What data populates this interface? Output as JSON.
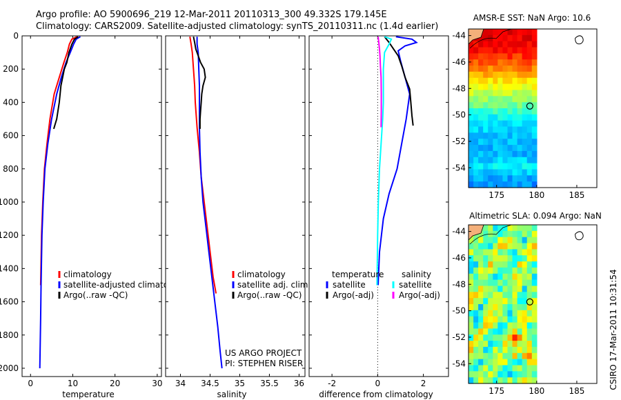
{
  "header": {
    "line1": "Argo profile: AO 5900696_219 12-Mar-2011 20110313_300 49.332S 179.145E",
    "line2": "Climatology: CARS2009. Satellite-adjusted climatology: synTS_20110311.nc (1.4d earlier)"
  },
  "footer": {
    "credit_line1": "US ARGO PROJECT",
    "credit_line2": "PI: STEPHEN RISER",
    "timestamp": "CSIRO 17-Mar-2011 10:31:54"
  },
  "colors": {
    "climatology": "#ff0000",
    "satellite": "#0000ff",
    "argo": "#000000",
    "satellite_diff_salinity": "#00ffff",
    "argo_diff_salinity": "#ff00ff"
  },
  "chart_data": [
    {
      "type": "line",
      "title": "",
      "xlabel": "temperature",
      "ylabel": "",
      "xlim": [
        -2,
        31
      ],
      "ylim": [
        2050,
        0
      ],
      "y_reversed": true,
      "xticks": [
        "0",
        "10",
        "20",
        "30"
      ],
      "yticks": [
        "0",
        "200",
        "400",
        "600",
        "800",
        "1000",
        "1200",
        "1400",
        "1600",
        "1800",
        "2000"
      ],
      "legend_position": "lower-right",
      "series": [
        {
          "name": "climatology",
          "color": "#ff0000",
          "points": [
            [
              11,
              5
            ],
            [
              9.8,
              20
            ],
            [
              9.2,
              50
            ],
            [
              8.7,
              100
            ],
            [
              7.9,
              160
            ],
            [
              6.8,
              250
            ],
            [
              5.6,
              350
            ],
            [
              4.6,
              500
            ],
            [
              3.9,
              650
            ],
            [
              3.3,
              800
            ],
            [
              2.9,
              1000
            ],
            [
              2.6,
              1200
            ],
            [
              2.4,
              1500
            ]
          ]
        },
        {
          "name": "satellite-adjusted climatology",
          "color": "#0000ff",
          "points": [
            [
              11.8,
              5
            ],
            [
              10.8,
              20
            ],
            [
              10.2,
              50
            ],
            [
              9.4,
              100
            ],
            [
              8.4,
              160
            ],
            [
              7.3,
              250
            ],
            [
              6.2,
              350
            ],
            [
              5.0,
              500
            ],
            [
              4.1,
              650
            ],
            [
              3.4,
              800
            ],
            [
              3.0,
              1000
            ],
            [
              2.7,
              1200
            ],
            [
              2.5,
              1500
            ],
            [
              2.4,
              1700
            ],
            [
              2.3,
              1850
            ],
            [
              2.2,
              2000
            ]
          ]
        },
        {
          "name": "Argo(..raw -QC)",
          "color": "#000000",
          "points": [
            [
              11.3,
              5
            ],
            [
              10.4,
              20
            ],
            [
              9.8,
              50
            ],
            [
              9.1,
              100
            ],
            [
              8.6,
              160
            ],
            [
              8.0,
              200
            ],
            [
              7.6,
              250
            ],
            [
              7.2,
              300
            ],
            [
              6.8,
              400
            ],
            [
              6.2,
              500
            ],
            [
              5.5,
              560
            ]
          ]
        }
      ]
    },
    {
      "type": "line",
      "title": "",
      "xlabel": "salinity",
      "ylabel": "",
      "xlim": [
        33.75,
        36.1
      ],
      "ylim": [
        2050,
        0
      ],
      "y_reversed": true,
      "xticks": [
        "34",
        "34.5",
        "35",
        "35.5",
        "36"
      ],
      "legend_position": "lower-right",
      "series": [
        {
          "name": "climatology",
          "color": "#ff0000",
          "points": [
            [
              34.16,
              5
            ],
            [
              34.18,
              50
            ],
            [
              34.2,
              100
            ],
            [
              34.22,
              200
            ],
            [
              34.24,
              300
            ],
            [
              34.25,
              400
            ],
            [
              34.28,
              550
            ],
            [
              34.32,
              700
            ],
            [
              34.35,
              850
            ],
            [
              34.4,
              1000
            ],
            [
              34.45,
              1150
            ],
            [
              34.5,
              1300
            ],
            [
              34.55,
              1450
            ],
            [
              34.6,
              1550
            ]
          ]
        },
        {
          "name": "satellite adj. clim.",
          "color": "#0000ff",
          "points": [
            [
              34.28,
              5
            ],
            [
              34.28,
              50
            ],
            [
              34.3,
              100
            ],
            [
              34.31,
              200
            ],
            [
              34.32,
              300
            ],
            [
              34.32,
              400
            ],
            [
              34.32,
              550
            ],
            [
              34.33,
              700
            ],
            [
              34.35,
              850
            ],
            [
              34.38,
              1000
            ],
            [
              34.43,
              1150
            ],
            [
              34.48,
              1300
            ],
            [
              34.53,
              1450
            ],
            [
              34.58,
              1600
            ],
            [
              34.63,
              1750
            ],
            [
              34.67,
              1900
            ],
            [
              34.7,
              2000
            ]
          ]
        },
        {
          "name": "Argo(..raw -QC)",
          "color": "#000000",
          "points": [
            [
              34.22,
              5
            ],
            [
              34.24,
              40
            ],
            [
              34.26,
              80
            ],
            [
              34.3,
              120
            ],
            [
              34.34,
              160
            ],
            [
              34.4,
              200
            ],
            [
              34.42,
              250
            ],
            [
              34.38,
              300
            ],
            [
              34.36,
              350
            ],
            [
              34.35,
              400
            ],
            [
              34.34,
              450
            ],
            [
              34.33,
              500
            ],
            [
              34.33,
              560
            ]
          ]
        }
      ]
    },
    {
      "type": "line",
      "title": "",
      "xlabel": "difference from climatology",
      "ylabel": "",
      "xlim": [
        -3,
        3.1
      ],
      "ylim": [
        2050,
        0
      ],
      "y_reversed": true,
      "xticks": [
        "-2",
        "0",
        "2"
      ],
      "zero_line": true,
      "legend_groups": [
        "temperature",
        "salinity"
      ],
      "legend_position": "lower-right",
      "series": [
        {
          "name": "satellite",
          "group": "temperature",
          "color": "#0000ff",
          "points": [
            [
              0.8,
              5
            ],
            [
              1.5,
              20
            ],
            [
              1.7,
              40
            ],
            [
              1.2,
              60
            ],
            [
              0.9,
              90
            ],
            [
              1.0,
              150
            ],
            [
              1.2,
              250
            ],
            [
              1.4,
              350
            ],
            [
              1.25,
              500
            ],
            [
              1.05,
              650
            ],
            [
              0.85,
              800
            ],
            [
              0.5,
              950
            ],
            [
              0.25,
              1100
            ],
            [
              0.08,
              1300
            ],
            [
              0.02,
              1500
            ]
          ]
        },
        {
          "name": "Argo(-adj)",
          "group": "temperature",
          "color": "#000000",
          "points": [
            [
              0.3,
              5
            ],
            [
              0.5,
              40
            ],
            [
              0.7,
              80
            ],
            [
              0.9,
              120
            ],
            [
              1.05,
              180
            ],
            [
              1.2,
              250
            ],
            [
              1.4,
              320
            ],
            [
              1.45,
              400
            ],
            [
              1.5,
              480
            ],
            [
              1.55,
              540
            ]
          ]
        },
        {
          "name": "satellite",
          "group": "salinity",
          "color": "#00ffff",
          "points": [
            [
              0.3,
              5
            ],
            [
              0.6,
              20
            ],
            [
              0.5,
              50
            ],
            [
              0.3,
              100
            ],
            [
              0.25,
              200
            ],
            [
              0.25,
              300
            ],
            [
              0.25,
              400
            ],
            [
              0.22,
              500
            ],
            [
              0.15,
              650
            ],
            [
              0.08,
              800
            ],
            [
              0.03,
              1000
            ],
            [
              0.0,
              1200
            ],
            [
              -0.02,
              1400
            ],
            [
              -0.03,
              1500
            ]
          ]
        },
        {
          "name": "Argo(-adj)",
          "group": "salinity",
          "color": "#ff00ff",
          "points": [
            [
              0.02,
              5
            ],
            [
              0.05,
              40
            ],
            [
              0.08,
              80
            ],
            [
              0.1,
              120
            ],
            [
              0.12,
              180
            ],
            [
              0.15,
              250
            ],
            [
              0.16,
              350
            ],
            [
              0.16,
              450
            ],
            [
              0.15,
              550
            ]
          ]
        }
      ]
    },
    {
      "type": "heatmap",
      "title": "AMSR-E SST: NaN Argo: 10.6",
      "xlabel": "",
      "ylabel": "",
      "xlim": [
        171.5,
        187.5
      ],
      "ylim": [
        -55.5,
        -43.5
      ],
      "xticks": [
        "175",
        "180",
        "185"
      ],
      "yticks": [
        "-44",
        "-46",
        "-48",
        "-50",
        "-52",
        "-54"
      ],
      "data_xlim": [
        171.5,
        180
      ],
      "colormap": "jet",
      "argo_position": {
        "lon": 179.145,
        "lat": -49.332
      },
      "sst_rows_north_to_south": [
        9.9,
        9.9,
        9.7,
        9.5,
        9.1,
        8.7,
        8.3,
        7.7,
        7.1,
        6.7,
        6.2,
        5.7,
        5.3,
        4.7,
        4.2,
        3.9,
        3.7,
        3.5,
        3.4,
        3.3,
        3.3,
        3.6,
        4.0,
        3.6,
        3.2,
        2.9
      ]
    },
    {
      "type": "heatmap",
      "title": "Altimetric SLA: 0.094 Argo: NaN",
      "xlabel": "",
      "ylabel": "",
      "xlim": [
        171.5,
        187.5
      ],
      "ylim": [
        -55.5,
        -43.5
      ],
      "xticks": [
        "175",
        "180",
        "185"
      ],
      "yticks": [
        "-44",
        "-46",
        "-48",
        "-50",
        "-52",
        "-54"
      ],
      "data_xlim": [
        171.5,
        180
      ],
      "colormap": "jet",
      "argo_position": {
        "lon": 179.145,
        "lat": -49.332
      }
    }
  ]
}
